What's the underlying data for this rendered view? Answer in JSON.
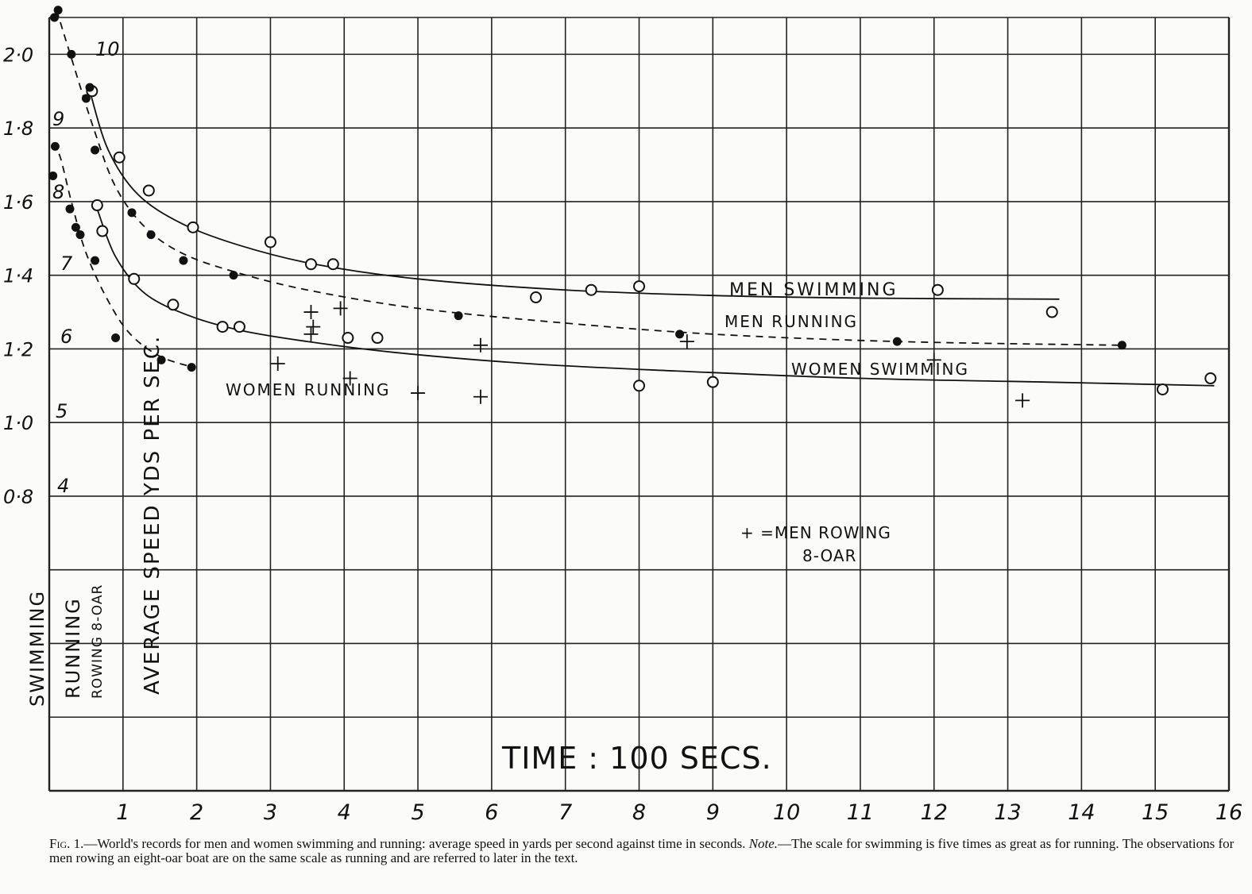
{
  "chart_data": {
    "type": "scatter",
    "x_ticks": [
      "1",
      "2",
      "3",
      "4",
      "5",
      "6",
      "7",
      "8",
      "9",
      "10",
      "11",
      "12",
      "13",
      "14",
      "15",
      "16"
    ],
    "y_ticks": [
      "2·0",
      "1·8",
      "1·6",
      "1·4",
      "1·2",
      "1·0",
      "0·8"
    ],
    "running_ticks": [
      "10",
      "9",
      "8",
      "7",
      "6",
      "5",
      "4"
    ],
    "xlim": [
      0,
      16
    ],
    "ylim": [
      0,
      2.1
    ],
    "ylabel": "AVERAGE   SPEED YDS PER SEC.",
    "ylabel_swimming": "SWIMMING",
    "ylabel_running": "RUNNING",
    "ylabel_rowing": "ROWING 8-OAR",
    "xlabel": "TIME :  100 SECS.",
    "series": [
      {
        "name": "MEN SWIMMING",
        "marker": "open-circle",
        "curve": "solid",
        "x": [
          0.58,
          0.95,
          1.35,
          1.95,
          3.0,
          3.55,
          3.85,
          6.6,
          7.35,
          8.0,
          12.05,
          13.6
        ],
        "y": [
          1.9,
          1.72,
          1.63,
          1.53,
          1.49,
          1.43,
          1.43,
          1.34,
          1.36,
          1.37,
          1.36,
          1.3
        ],
        "curve_x": [
          0.55,
          0.8,
          1.2,
          1.8,
          2.6,
          3.6,
          5.0,
          7.0,
          9.0,
          11.0,
          13.7
        ],
        "curve_y": [
          1.9,
          1.74,
          1.62,
          1.54,
          1.48,
          1.43,
          1.39,
          1.36,
          1.345,
          1.338,
          1.335
        ]
      },
      {
        "name": "MEN RUNNING",
        "marker": "filled-circle",
        "curve": "dashed",
        "x": [
          0.07,
          0.12,
          0.3,
          0.5,
          0.55,
          0.62,
          1.12,
          1.38,
          1.82,
          2.5,
          5.55,
          8.55,
          11.5,
          14.55
        ],
        "y": [
          2.1,
          2.12,
          2.0,
          1.88,
          1.91,
          1.74,
          1.57,
          1.51,
          1.44,
          1.4,
          1.29,
          1.24,
          1.22,
          1.21
        ],
        "curve_x": [
          0.1,
          0.3,
          0.6,
          0.9,
          1.3,
          1.8,
          2.5,
          3.5,
          5.0,
          7.0,
          9.0,
          11.5,
          14.5
        ],
        "curve_y": [
          2.12,
          1.99,
          1.8,
          1.64,
          1.53,
          1.46,
          1.41,
          1.36,
          1.31,
          1.27,
          1.24,
          1.22,
          1.21
        ]
      },
      {
        "name": "WOMEN SWIMMING",
        "marker": "open-circle",
        "curve": "solid",
        "x": [
          0.65,
          0.72,
          1.15,
          1.68,
          2.35,
          2.58,
          4.05,
          4.45,
          8.0,
          9.0,
          15.1,
          15.75
        ],
        "y": [
          1.59,
          1.52,
          1.39,
          1.32,
          1.26,
          1.26,
          1.23,
          1.23,
          1.1,
          1.11,
          1.09,
          1.12
        ],
        "curve_x": [
          0.65,
          0.9,
          1.3,
          1.9,
          2.6,
          3.5,
          4.7,
          6.5,
          8.5,
          11.0,
          13.5,
          15.8
        ],
        "curve_y": [
          1.58,
          1.45,
          1.35,
          1.29,
          1.25,
          1.22,
          1.19,
          1.16,
          1.14,
          1.12,
          1.11,
          1.1
        ]
      },
      {
        "name": "WOMEN RUNNING",
        "marker": "filled-circle",
        "curve": "dashed",
        "x": [
          0.05,
          0.08,
          0.28,
          0.36,
          0.42,
          0.62,
          0.9,
          1.52,
          1.93
        ],
        "y": [
          1.67,
          1.75,
          1.58,
          1.53,
          1.51,
          1.44,
          1.23,
          1.17,
          1.15
        ],
        "curve_x": [
          0.05,
          0.15,
          0.3,
          0.5,
          0.8,
          1.1,
          1.5,
          1.95
        ],
        "curve_y": [
          1.76,
          1.72,
          1.6,
          1.46,
          1.33,
          1.24,
          1.18,
          1.15
        ]
      },
      {
        "name": "+ = MEN ROWING 8-OAR",
        "marker": "plus",
        "curve": "none",
        "x": [
          3.1,
          3.55,
          3.58,
          3.55,
          3.95,
          4.08,
          5.0,
          5.85,
          5.85,
          8.65,
          12.0,
          13.2
        ],
        "y": [
          1.16,
          1.3,
          1.26,
          1.24,
          1.31,
          1.12,
          1.08,
          1.21,
          1.07,
          1.22,
          1.17,
          1.06
        ]
      }
    ],
    "annotations": {
      "men_swimming": "MEN  SWIMMING",
      "men_running": "MEN  RUNNING",
      "women_swimming": "WOMEN  SWIMMING",
      "women_running": "WOMEN  RUNNING",
      "rowing_line1": "+ =MEN  ROWING",
      "rowing_line2": "8-OAR"
    },
    "grid": true,
    "legend": "none"
  },
  "caption": {
    "fig_label": "Fig. 1.",
    "text": "—World's records for men and women swimming and running: average speed in yards per second against time in seconds.",
    "note_label": "Note.",
    "note_text": "—The scale for swimming is five times as great as for running. The observations for men rowing an eight-oar boat are on the same scale as running and are referred to later in the text."
  }
}
